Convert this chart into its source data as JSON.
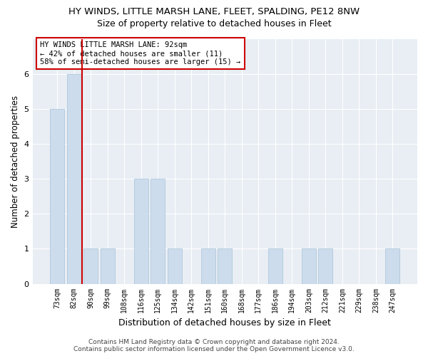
{
  "title1": "HY WINDS, LITTLE MARSH LANE, FLEET, SPALDING, PE12 8NW",
  "title2": "Size of property relative to detached houses in Fleet",
  "xlabel": "Distribution of detached houses by size in Fleet",
  "ylabel": "Number of detached properties",
  "categories": [
    "73sqm",
    "82sqm",
    "90sqm",
    "99sqm",
    "108sqm",
    "116sqm",
    "125sqm",
    "134sqm",
    "142sqm",
    "151sqm",
    "160sqm",
    "168sqm",
    "177sqm",
    "186sqm",
    "194sqm",
    "203sqm",
    "212sqm",
    "221sqm",
    "229sqm",
    "238sqm",
    "247sqm"
  ],
  "values": [
    5,
    6,
    1,
    1,
    0,
    3,
    3,
    1,
    0,
    1,
    1,
    0,
    0,
    1,
    0,
    1,
    1,
    0,
    0,
    0,
    1
  ],
  "bar_color": "#ccdcec",
  "bar_edge_color": "#b0c8dc",
  "vline_color": "#cc0000",
  "annotation_title": "HY WINDS LITTLE MARSH LANE: 92sqm",
  "annotation_line1": "← 42% of detached houses are smaller (11)",
  "annotation_line2": "58% of semi-detached houses are larger (15) →",
  "annotation_box_color": "#cc0000",
  "ylim": [
    0,
    7
  ],
  "yticks": [
    0,
    1,
    2,
    3,
    4,
    5,
    6,
    7
  ],
  "footer1": "Contains HM Land Registry data © Crown copyright and database right 2024.",
  "footer2": "Contains public sector information licensed under the Open Government Licence v3.0.",
  "bg_color": "#ffffff",
  "plot_bg_color": "#e8eef4",
  "grid_color": "#ffffff"
}
